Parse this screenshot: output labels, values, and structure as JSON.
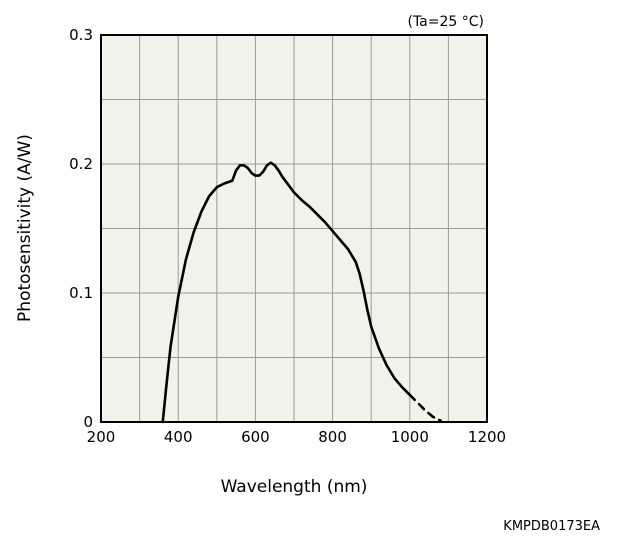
{
  "chart_data": {
    "type": "line",
    "title": "",
    "condition": "(Ta=25 °C)",
    "xlabel": "Wavelength (nm)",
    "ylabel": "Photosensitivity (A/W)",
    "xlim": [
      200,
      1200
    ],
    "ylim": [
      0,
      0.3
    ],
    "x_ticks": [
      200,
      400,
      600,
      800,
      1000,
      1200
    ],
    "x_tick_labels": [
      "200",
      "400",
      "600",
      "800",
      "1000",
      "1200"
    ],
    "y_ticks": [
      0,
      0.1,
      0.2,
      0.3
    ],
    "y_tick_labels": [
      "0",
      "0.1",
      "0.2",
      "0.3"
    ],
    "grid": true,
    "plot_background": "#f3f2ea",
    "line_color": "#000000",
    "series": [
      {
        "style": "solid",
        "x": [
          360,
          370,
          380,
          400,
          420,
          440,
          460,
          480,
          500,
          520,
          540,
          550,
          560,
          570,
          580,
          590,
          600,
          610,
          620,
          630,
          640,
          650,
          660,
          670,
          680,
          700,
          720,
          740,
          760,
          780,
          800,
          820,
          840,
          860,
          870,
          880,
          890,
          900,
          920,
          940,
          960,
          980,
          1000
        ],
        "y": [
          0.0,
          0.03,
          0.058,
          0.097,
          0.126,
          0.147,
          0.163,
          0.175,
          0.182,
          0.185,
          0.187,
          0.195,
          0.199,
          0.199,
          0.197,
          0.193,
          0.191,
          0.191,
          0.194,
          0.199,
          0.201,
          0.199,
          0.195,
          0.19,
          0.186,
          0.178,
          0.172,
          0.167,
          0.161,
          0.155,
          0.148,
          0.141,
          0.134,
          0.124,
          0.115,
          0.102,
          0.087,
          0.074,
          0.057,
          0.044,
          0.034,
          0.027,
          0.021
        ]
      },
      {
        "style": "dashed",
        "x": [
          1000,
          1020,
          1040,
          1060,
          1080
        ],
        "y": [
          0.021,
          0.015,
          0.009,
          0.004,
          0.001
        ]
      }
    ]
  },
  "figure_code": "KMPDB0173EA"
}
